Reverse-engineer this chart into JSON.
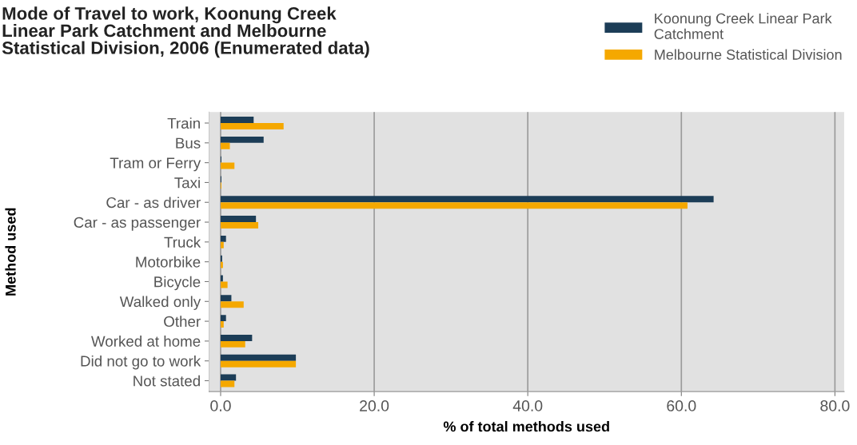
{
  "chart_data": {
    "type": "bar",
    "orientation": "horizontal",
    "title": "Mode of Travel to work, Koonung Creek\nLinear Park Catchment and Melbourne\nStatistical Division, 2006 (Enumerated data)",
    "xlabel": "% of total methods used",
    "ylabel": "Method used",
    "categories": [
      "Train",
      "Bus",
      "Tram or Ferry",
      "Taxi",
      "Car - as driver",
      "Car - as passenger",
      "Truck",
      "Motorbike",
      "Bicycle",
      "Walked only",
      "Other",
      "Worked at home",
      "Did not go to work",
      "Not stated"
    ],
    "series": [
      {
        "name": "Koonung Creek Linear Park\nCatchment",
        "color": "#1c3d57",
        "values": [
          4.3,
          5.6,
          0.1,
          0.1,
          64.2,
          4.6,
          0.7,
          0.2,
          0.3,
          1.4,
          0.7,
          4.1,
          9.8,
          2.0
        ]
      },
      {
        "name": "Melbourne Statistical Division",
        "color": "#f5a800",
        "values": [
          8.2,
          1.2,
          1.8,
          0.1,
          60.8,
          4.9,
          0.4,
          0.3,
          0.9,
          3.0,
          0.4,
          3.2,
          9.8,
          1.8
        ]
      }
    ],
    "xlim": [
      -1.5,
      81.2
    ],
    "xticks": [
      {
        "value": 0,
        "label": "0.0"
      },
      {
        "value": 20,
        "label": "20.0"
      },
      {
        "value": 40,
        "label": "40.0"
      },
      {
        "value": 60,
        "label": "60.0"
      },
      {
        "value": 80,
        "label": "80.0"
      }
    ],
    "grid": "x",
    "legend": "top right"
  }
}
